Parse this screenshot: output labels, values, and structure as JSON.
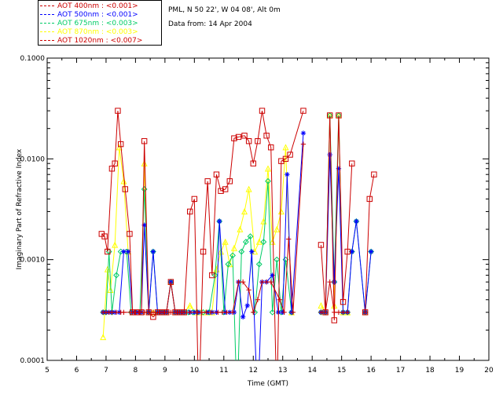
{
  "legend": [
    {
      "label": "AOT  400nm : <0.001>",
      "color": "#cc0000"
    },
    {
      "label": "AOT  500nm : <0.001>",
      "color": "#0000ff"
    },
    {
      "label": "AOT  675nm : <0.003>",
      "color": "#00cc66"
    },
    {
      "label": "AOT  870nm : <0.003>",
      "color": "#ffff00"
    },
    {
      "label": "AOT 1020nm : <0.007>",
      "color": "#cc0000"
    }
  ],
  "info": {
    "site": "PML, N 50 22', W 04 08', Alt 0m",
    "date": "Data from: 14 Apr 2004"
  },
  "chart_data": {
    "type": "line",
    "xlabel": "Time (GMT)",
    "ylabel": "Imaginary Part of Refractive Index",
    "xlim": [
      5,
      20
    ],
    "ylim": [
      0.0001,
      0.1
    ],
    "yscale": "log",
    "x_ticks": [
      "5",
      "6",
      "7",
      "8",
      "9",
      "10",
      "11",
      "12",
      "13",
      "14",
      "15",
      "16",
      "17",
      "18",
      "19",
      "20"
    ],
    "y_ticks": [
      "0.0001",
      "0.0010",
      "0.0100",
      "0.1000"
    ],
    "series": [
      {
        "name": "AOT  400nm : <0.001>",
        "color": "#cc0000",
        "marker": "plus",
        "points": [
          [
            6.9,
            0.0003
          ],
          [
            7.0,
            0.0003
          ],
          [
            7.1,
            0.0003
          ],
          [
            7.2,
            0.0003
          ],
          [
            7.35,
            0.0003
          ],
          [
            7.5,
            0.0003
          ],
          [
            7.6,
            0.0003
          ],
          [
            7.9,
            0.0003
          ],
          [
            8.0,
            0.0003
          ],
          [
            8.15,
            0.0003
          ],
          [
            8.3,
            0.0003
          ],
          [
            8.45,
            0.0003
          ],
          [
            8.6,
            0.0003
          ],
          [
            8.75,
            0.0003
          ],
          [
            8.9,
            0.0003
          ],
          [
            9.05,
            0.0003
          ],
          [
            9.2,
            0.0003
          ],
          [
            9.35,
            0.0003
          ],
          [
            9.5,
            0.0003
          ],
          [
            9.65,
            0.0003
          ],
          [
            9.85,
            0.0003
          ],
          [
            10.1,
            0.0003
          ],
          [
            10.25,
            0.0003
          ],
          [
            10.4,
            0.0003
          ],
          [
            10.55,
            0.0003
          ],
          [
            10.8,
            0.0003
          ],
          [
            10.95,
            0.0003
          ],
          [
            11.1,
            0.0003
          ],
          [
            11.3,
            0.0003
          ],
          [
            11.5,
            0.0006
          ],
          [
            11.65,
            0.0006
          ],
          [
            11.85,
            0.0005
          ],
          [
            12.0,
            0.0003
          ],
          [
            12.15,
            0.0004
          ],
          [
            12.3,
            0.0006
          ],
          [
            12.45,
            0.0006
          ],
          [
            12.6,
            0.0006
          ],
          [
            12.9,
            0.0004
          ],
          [
            13.05,
            0.0003
          ],
          [
            13.2,
            0.0016
          ],
          [
            13.35,
            0.0003
          ],
          [
            13.7,
            0.014
          ],
          [
            14.3,
            0.0003
          ],
          [
            14.45,
            0.0003
          ],
          [
            14.6,
            0.0006
          ],
          [
            14.75,
            0.0003
          ],
          [
            14.9,
            0.0003
          ],
          [
            15.05,
            0.0003
          ],
          [
            15.2,
            0.0003
          ],
          [
            15.8,
            0.0003
          ]
        ]
      },
      {
        "name": "AOT  500nm : <0.001>",
        "color": "#0000ff",
        "marker": "star",
        "points": [
          [
            6.9,
            0.0003
          ],
          [
            7.0,
            0.0003
          ],
          [
            7.1,
            0.0003
          ],
          [
            7.2,
            0.0003
          ],
          [
            7.3,
            0.0003
          ],
          [
            7.45,
            0.0003
          ],
          [
            7.6,
            0.0012
          ],
          [
            7.75,
            0.0012
          ],
          [
            7.9,
            0.0003
          ],
          [
            8.05,
            0.0003
          ],
          [
            8.2,
            0.0003
          ],
          [
            8.3,
            0.0022
          ],
          [
            8.45,
            0.0003
          ],
          [
            8.6,
            0.0012
          ],
          [
            8.75,
            0.0003
          ],
          [
            8.9,
            0.0003
          ],
          [
            9.05,
            0.0003
          ],
          [
            9.2,
            0.0006
          ],
          [
            9.35,
            0.0003
          ],
          [
            9.5,
            0.0003
          ],
          [
            9.65,
            0.0003
          ],
          [
            9.85,
            0.0003
          ],
          [
            10.0,
            0.0003
          ],
          [
            10.15,
            0.0003
          ],
          [
            10.45,
            0.0003
          ],
          [
            10.6,
            0.0003
          ],
          [
            10.75,
            0.0003
          ],
          [
            10.85,
            0.0024
          ],
          [
            11.05,
            0.0003
          ],
          [
            11.2,
            0.0003
          ],
          [
            11.35,
            0.0003
          ],
          [
            11.5,
            0.0006
          ],
          [
            11.65,
            0.00027
          ],
          [
            11.8,
            0.00035
          ],
          [
            11.95,
            0.0012
          ],
          [
            12.15,
            0.0
          ],
          [
            12.3,
            0.0006
          ],
          [
            12.45,
            0.0006
          ],
          [
            12.65,
            0.0007
          ],
          [
            12.85,
            0.0003
          ],
          [
            13.0,
            0.0003
          ],
          [
            13.15,
            0.007
          ],
          [
            13.3,
            0.0003
          ],
          [
            13.7,
            0.018
          ],
          [
            14.3,
            0.0003
          ],
          [
            14.45,
            0.0003
          ],
          [
            14.6,
            0.011
          ],
          [
            14.75,
            0.0006
          ],
          [
            14.9,
            0.008
          ],
          [
            15.05,
            0.0003
          ],
          [
            15.2,
            0.0003
          ],
          [
            15.35,
            0.0012
          ],
          [
            15.5,
            0.0024
          ],
          [
            15.8,
            0.0003
          ],
          [
            16.0,
            0.0012
          ]
        ]
      },
      {
        "name": "AOT  675nm : <0.003>",
        "color": "#00cc66",
        "marker": "diamond",
        "points": [
          [
            6.9,
            0.0003
          ],
          [
            7.0,
            0.0003
          ],
          [
            7.1,
            0.0012
          ],
          [
            7.2,
            0.0003
          ],
          [
            7.35,
            0.0007
          ],
          [
            7.5,
            0.0012
          ],
          [
            7.7,
            0.0012
          ],
          [
            7.85,
            0.0003
          ],
          [
            8.0,
            0.0003
          ],
          [
            8.15,
            0.0003
          ],
          [
            8.3,
            0.005
          ],
          [
            8.45,
            0.0003
          ],
          [
            8.6,
            0.0012
          ],
          [
            8.75,
            0.0003
          ],
          [
            8.9,
            0.0003
          ],
          [
            9.05,
            0.0003
          ],
          [
            9.2,
            0.0006
          ],
          [
            9.35,
            0.0003
          ],
          [
            9.5,
            0.0003
          ],
          [
            9.65,
            0.0003
          ],
          [
            9.8,
            0.0003
          ],
          [
            9.95,
            0.0003
          ],
          [
            10.1,
            0.0003
          ],
          [
            10.3,
            0.0003
          ],
          [
            10.5,
            0.0003
          ],
          [
            10.7,
            0.0007
          ],
          [
            10.85,
            0.0024
          ],
          [
            11.0,
            0.0003
          ],
          [
            11.15,
            0.0009
          ],
          [
            11.3,
            0.0011
          ],
          [
            11.45,
            0.0
          ],
          [
            11.6,
            0.0012
          ],
          [
            11.75,
            0.0015
          ],
          [
            11.9,
            0.0017
          ],
          [
            12.05,
            0.0003
          ],
          [
            12.2,
            0.0009
          ],
          [
            12.35,
            0.0015
          ],
          [
            12.5,
            0.006
          ],
          [
            12.65,
            0.0003
          ],
          [
            12.8,
            0.001
          ],
          [
            12.95,
            0.0003
          ],
          [
            13.1,
            0.001
          ],
          [
            13.3,
            0.0003
          ],
          [
            14.3,
            0.0003
          ],
          [
            14.45,
            0.0003
          ],
          [
            14.6,
            0.027
          ],
          [
            14.75,
            0.0006
          ],
          [
            14.9,
            0.027
          ],
          [
            15.05,
            0.0003
          ],
          [
            15.2,
            0.0003
          ],
          [
            15.35,
            0.0012
          ],
          [
            15.5,
            0.0024
          ],
          [
            15.8,
            0.0003
          ],
          [
            16.0,
            0.0012
          ]
        ]
      },
      {
        "name": "AOT  870nm : <0.003>",
        "color": "#ffff00",
        "marker": "triangle",
        "points": [
          [
            6.9,
            0.00017
          ],
          [
            7.05,
            0.0008
          ],
          [
            7.15,
            0.0005
          ],
          [
            7.3,
            0.0014
          ],
          [
            7.45,
            0.013
          ],
          [
            7.6,
            0.006
          ],
          [
            7.75,
            0.0012
          ],
          [
            7.9,
            0.0003
          ],
          [
            8.05,
            0.0003
          ],
          [
            8.2,
            0.0003
          ],
          [
            8.3,
            0.009
          ],
          [
            8.45,
            0.0003
          ],
          [
            8.6,
            0.0003
          ],
          [
            8.75,
            0.0003
          ],
          [
            8.9,
            0.0003
          ],
          [
            9.05,
            0.0003
          ],
          [
            9.2,
            0.0006
          ],
          [
            9.35,
            0.0003
          ],
          [
            9.5,
            0.0003
          ],
          [
            9.65,
            0.0003
          ],
          [
            9.85,
            0.00035
          ],
          [
            10.05,
            0.0003
          ],
          [
            10.2,
            0.0003
          ],
          [
            10.4,
            0.0003
          ],
          [
            10.6,
            0.0003
          ],
          [
            10.75,
            0.0008
          ],
          [
            10.9,
            0.0012
          ],
          [
            11.05,
            0.0015
          ],
          [
            11.2,
            0.0009
          ],
          [
            11.35,
            0.0013
          ],
          [
            11.55,
            0.002
          ],
          [
            11.7,
            0.003
          ],
          [
            11.85,
            0.005
          ],
          [
            12.05,
            0.0012
          ],
          [
            12.2,
            0.0015
          ],
          [
            12.35,
            0.0024
          ],
          [
            12.5,
            0.008
          ],
          [
            12.65,
            0.0015
          ],
          [
            12.8,
            0.002
          ],
          [
            12.95,
            0.003
          ],
          [
            13.1,
            0.013
          ],
          [
            13.3,
            0.0003
          ],
          [
            14.3,
            0.00035
          ],
          [
            14.45,
            0.0003
          ],
          [
            14.6,
            0.027
          ],
          [
            14.75,
            0.00035
          ],
          [
            14.9,
            0.027
          ],
          [
            15.05,
            0.0003
          ],
          [
            15.2,
            0.0003
          ],
          [
            15.8,
            0.0003
          ]
        ]
      },
      {
        "name": "AOT 1020nm : <0.007>",
        "color": "#cc0000",
        "marker": "square",
        "points": [
          [
            6.85,
            0.0018
          ],
          [
            6.95,
            0.0017
          ],
          [
            7.05,
            0.0012
          ],
          [
            7.2,
            0.008
          ],
          [
            7.3,
            0.009
          ],
          [
            7.4,
            0.03
          ],
          [
            7.5,
            0.014
          ],
          [
            7.65,
            0.005
          ],
          [
            7.8,
            0.0018
          ],
          [
            7.9,
            0.0003
          ],
          [
            8.05,
            0.0003
          ],
          [
            8.2,
            0.0003
          ],
          [
            8.3,
            0.015
          ],
          [
            8.45,
            0.0003
          ],
          [
            8.6,
            0.00027
          ],
          [
            8.75,
            0.0003
          ],
          [
            8.9,
            0.0003
          ],
          [
            9.05,
            0.0003
          ],
          [
            9.2,
            0.0006
          ],
          [
            9.35,
            0.0003
          ],
          [
            9.5,
            0.0003
          ],
          [
            9.65,
            0.0003
          ],
          [
            9.85,
            0.003
          ],
          [
            10.0,
            0.004
          ],
          [
            10.15,
            0.0
          ],
          [
            10.3,
            0.0012
          ],
          [
            10.45,
            0.006
          ],
          [
            10.6,
            0.0007
          ],
          [
            10.75,
            0.007
          ],
          [
            10.9,
            0.0048
          ],
          [
            11.05,
            0.005
          ],
          [
            11.2,
            0.006
          ],
          [
            11.35,
            0.016
          ],
          [
            11.5,
            0.0165
          ],
          [
            11.7,
            0.017
          ],
          [
            11.85,
            0.015
          ],
          [
            12.0,
            0.009
          ],
          [
            12.15,
            0.015
          ],
          [
            12.3,
            0.03
          ],
          [
            12.45,
            0.017
          ],
          [
            12.6,
            0.013
          ],
          [
            12.8,
            0.0
          ],
          [
            12.95,
            0.0095
          ],
          [
            13.1,
            0.01
          ],
          [
            13.25,
            0.011
          ],
          [
            13.7,
            0.03
          ],
          [
            14.3,
            0.0014
          ],
          [
            14.45,
            0.0003
          ],
          [
            14.6,
            0.027
          ],
          [
            14.75,
            0.00025
          ],
          [
            14.9,
            0.027
          ],
          [
            15.05,
            0.00038
          ],
          [
            15.2,
            0.0012
          ],
          [
            15.35,
            0.009
          ],
          [
            15.8,
            0.0003
          ],
          [
            15.95,
            0.004
          ],
          [
            16.1,
            0.007
          ]
        ]
      }
    ]
  }
}
